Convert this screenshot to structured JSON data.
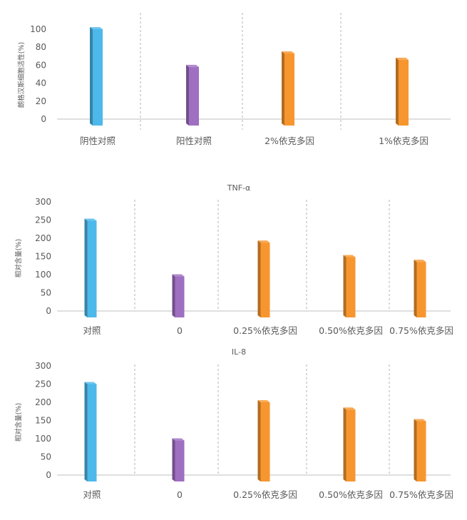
{
  "chart_data": [
    {
      "type": "bar",
      "title": "",
      "ylabel": "朗格汉斯细胞活性(%)",
      "xlabel": "",
      "categories": [
        "阴性对照",
        "阳性对照",
        "2%依克多因",
        "1%依克多因"
      ],
      "values": [
        100,
        58,
        73,
        66
      ],
      "ylim": [
        0,
        100
      ],
      "yticks": [
        0,
        20,
        40,
        60,
        80,
        100
      ],
      "bar_colors": [
        "#4db8ea",
        "#9f6fc1",
        "#f7962f",
        "#f7962f"
      ],
      "grid": false,
      "legend": "none"
    },
    {
      "type": "bar",
      "title": "TNF-α",
      "ylabel": "相对含量(%)",
      "xlabel": "",
      "categories": [
        "对照",
        "0",
        "0.25%依克多因",
        "0.50%依克多因",
        "0.75%依克多因"
      ],
      "values": [
        248,
        95,
        188,
        148,
        135
      ],
      "ylim": [
        0,
        300
      ],
      "yticks": [
        0,
        50,
        100,
        150,
        200,
        250,
        300
      ],
      "bar_colors": [
        "#4db8ea",
        "#9f6fc1",
        "#f7962f",
        "#f7962f",
        "#f7962f"
      ],
      "grid": false,
      "legend": "none"
    },
    {
      "type": "bar",
      "title": "IL-8",
      "ylabel": "相对含量(%)",
      "xlabel": "",
      "categories": [
        "对照",
        "0",
        "0.25%依克多因",
        "0.50%依克多因",
        "0.75%依克多因"
      ],
      "values": [
        250,
        95,
        200,
        180,
        148
      ],
      "ylim": [
        0,
        300
      ],
      "yticks": [
        0,
        50,
        100,
        150,
        200,
        250,
        300
      ],
      "bar_colors": [
        "#4db8ea",
        "#9f6fc1",
        "#f7962f",
        "#f7962f",
        "#f7962f"
      ],
      "grid": false,
      "legend": "none"
    }
  ],
  "colors": {
    "axis": "#bfbfbf",
    "separator": "#b3b3b3",
    "text": "#595959"
  }
}
